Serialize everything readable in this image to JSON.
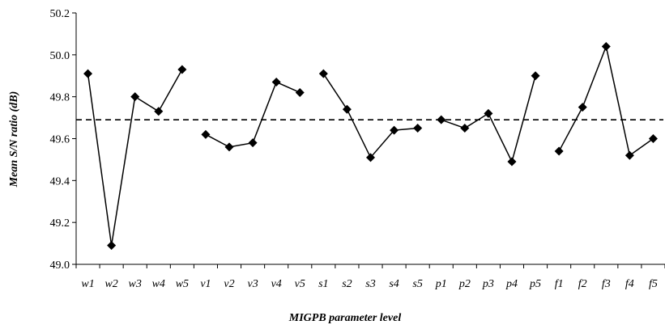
{
  "chart_data": {
    "type": "line",
    "xlabel": "MIGPB parameter level",
    "ylabel": "Mean S/N ratio (dB)",
    "ylim": [
      49.0,
      50.2
    ],
    "yticks": [
      "49.0",
      "49.2",
      "49.4",
      "49.6",
      "49.8",
      "50.0",
      "50.2"
    ],
    "categories": [
      "w1",
      "w2",
      "w3",
      "w4",
      "w5",
      "v1",
      "v2",
      "v3",
      "v4",
      "v5",
      "s1",
      "s2",
      "s3",
      "s4",
      "s5",
      "p1",
      "p2",
      "p3",
      "p4",
      "p5",
      "f1",
      "f2",
      "f3",
      "f4",
      "f5"
    ],
    "groups": [
      {
        "name": "w",
        "categories": [
          "w1",
          "w2",
          "w3",
          "w4",
          "w5"
        ],
        "values": [
          49.91,
          49.09,
          49.8,
          49.73,
          49.93
        ]
      },
      {
        "name": "v",
        "categories": [
          "v1",
          "v2",
          "v3",
          "v4",
          "v5"
        ],
        "values": [
          49.62,
          49.56,
          49.58,
          49.87,
          49.82
        ]
      },
      {
        "name": "s",
        "categories": [
          "s1",
          "s2",
          "s3",
          "s4",
          "s5"
        ],
        "values": [
          49.91,
          49.74,
          49.51,
          49.64,
          49.65
        ]
      },
      {
        "name": "p",
        "categories": [
          "p1",
          "p2",
          "p3",
          "p4",
          "p5"
        ],
        "values": [
          49.69,
          49.65,
          49.72,
          49.49,
          49.9
        ]
      },
      {
        "name": "f",
        "categories": [
          "f1",
          "f2",
          "f3",
          "f4",
          "f5"
        ],
        "values": [
          49.54,
          49.75,
          50.04,
          49.52,
          49.6
        ]
      }
    ],
    "reference_line": {
      "value": 49.69,
      "style": "dashed"
    },
    "marker": "diamond",
    "grid": false,
    "legend": "none"
  }
}
